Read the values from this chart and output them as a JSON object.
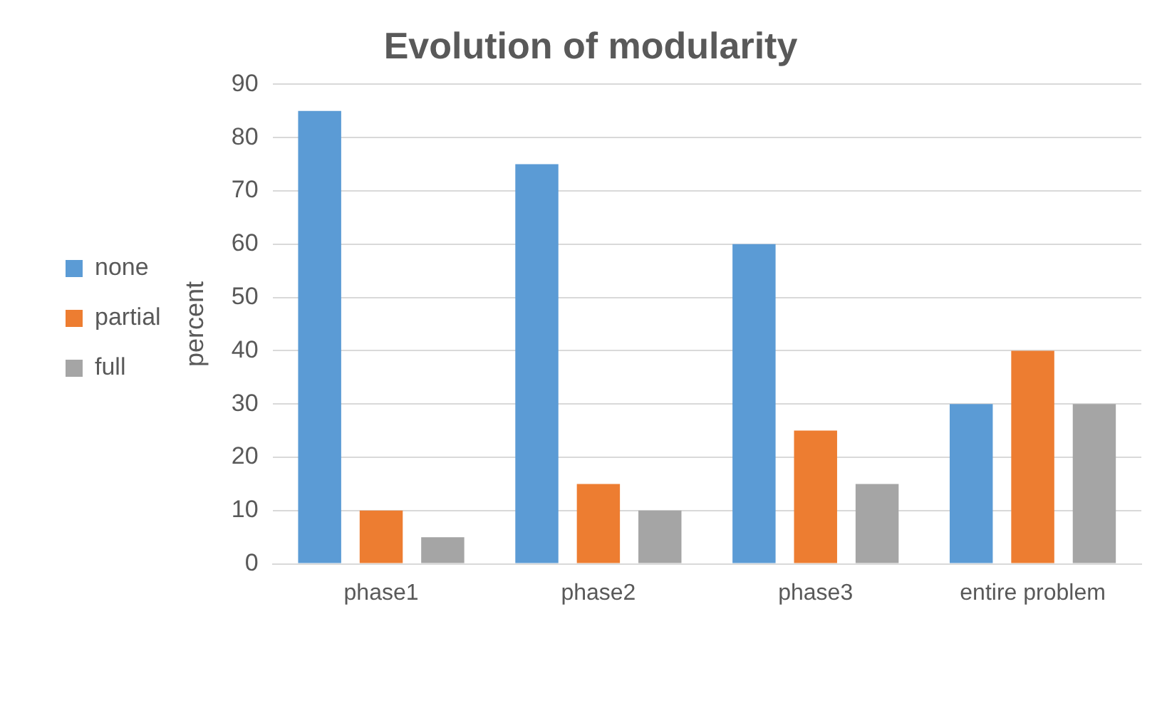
{
  "chart_data": {
    "type": "bar",
    "title": "Evolution of modularity",
    "ylabel": "percent",
    "categories": [
      "phase1",
      "phase2",
      "phase3",
      "entire problem"
    ],
    "series": [
      {
        "name": "none",
        "color": "#5b9bd5",
        "values": [
          85,
          75,
          60,
          30
        ]
      },
      {
        "name": "partial",
        "color": "#ed7d31",
        "values": [
          10,
          15,
          25,
          40
        ]
      },
      {
        "name": "full",
        "color": "#a5a5a5",
        "values": [
          5,
          10,
          15,
          30
        ]
      }
    ],
    "ylim": [
      0,
      90
    ],
    "yticks": [
      0,
      10,
      20,
      30,
      40,
      50,
      60,
      70,
      80,
      90
    ],
    "grid": "y",
    "legend": "left"
  }
}
